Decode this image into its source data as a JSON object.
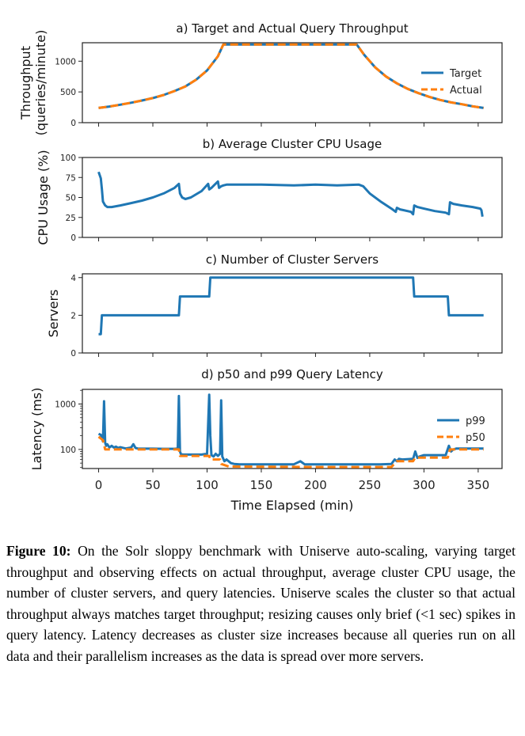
{
  "chart_data": [
    {
      "type": "line",
      "title": "a) Target and Actual Query Throughput",
      "ylabel": [
        "Throughput",
        "(queries/minute)"
      ],
      "xlim": [
        -15,
        372
      ],
      "ylim": [
        0,
        1300
      ],
      "yticks": [
        0,
        500,
        1000
      ],
      "legend_position": "right",
      "series": [
        {
          "name": "Target",
          "color": "#1f77b4",
          "dash": false,
          "x": [
            0,
            10,
            20,
            30,
            40,
            50,
            60,
            70,
            80,
            90,
            100,
            110,
            115,
            150,
            200,
            238,
            245,
            255,
            265,
            275,
            285,
            295,
            305,
            315,
            325,
            335,
            345,
            355
          ],
          "y": [
            240,
            262,
            292,
            325,
            360,
            400,
            450,
            515,
            590,
            700,
            850,
            1080,
            1270,
            1270,
            1270,
            1270,
            1100,
            900,
            750,
            640,
            550,
            480,
            420,
            370,
            330,
            300,
            265,
            240
          ]
        },
        {
          "name": "Actual",
          "color": "#ff7f0e",
          "dash": true,
          "x": [
            0,
            10,
            20,
            30,
            40,
            50,
            60,
            70,
            80,
            90,
            100,
            110,
            115,
            150,
            200,
            238,
            245,
            255,
            265,
            275,
            285,
            295,
            305,
            315,
            325,
            335,
            345,
            355
          ],
          "y": [
            240,
            262,
            292,
            325,
            360,
            400,
            450,
            515,
            590,
            700,
            850,
            1080,
            1270,
            1270,
            1270,
            1270,
            1100,
            900,
            750,
            640,
            550,
            480,
            420,
            370,
            330,
            300,
            265,
            240
          ]
        }
      ]
    },
    {
      "type": "line",
      "title": "b) Average Cluster CPU Usage",
      "ylabel": [
        "CPU Usage (%)"
      ],
      "xlim": [
        -15,
        372
      ],
      "ylim": [
        0,
        100
      ],
      "yticks": [
        0,
        25,
        50,
        75,
        100
      ],
      "series": [
        {
          "name": "",
          "color": "#1f77b4",
          "dash": false,
          "x": [
            0,
            1,
            2,
            3,
            4,
            6,
            8,
            12,
            20,
            30,
            40,
            50,
            60,
            70,
            74,
            75,
            77,
            80,
            85,
            95,
            101,
            102,
            104,
            107,
            110,
            111,
            113,
            115,
            118,
            130,
            150,
            180,
            200,
            220,
            240,
            244,
            250,
            260,
            270,
            274,
            275,
            278,
            288,
            290,
            291,
            294,
            300,
            310,
            320,
            323,
            324,
            327,
            335,
            345,
            352,
            353,
            354
          ],
          "y": [
            82,
            78,
            74,
            60,
            45,
            40,
            38,
            38,
            40,
            43,
            46,
            50,
            55,
            62,
            67,
            55,
            50,
            48,
            50,
            58,
            67,
            60,
            62,
            66,
            70,
            62,
            64,
            65,
            66,
            66,
            66,
            65,
            66,
            65,
            66,
            64,
            55,
            45,
            36,
            32,
            37,
            35,
            32,
            29,
            40,
            38,
            36,
            33,
            31,
            29,
            44,
            42,
            40,
            38,
            36,
            34,
            26
          ]
        }
      ]
    },
    {
      "type": "line",
      "title": "c) Number of Cluster Servers",
      "ylabel": [
        "Servers"
      ],
      "xlim": [
        -15,
        372
      ],
      "ylim": [
        0,
        4.2
      ],
      "yticks": [
        0,
        2,
        4
      ],
      "series": [
        {
          "name": "",
          "color": "#1f77b4",
          "dash": false,
          "x": [
            0,
            2,
            3,
            74,
            75,
            102,
            103,
            290,
            291,
            322,
            323,
            355
          ],
          "y": [
            1,
            1,
            2,
            2,
            3,
            3,
            4,
            4,
            3,
            3,
            2,
            2
          ]
        }
      ]
    },
    {
      "type": "line",
      "title": "d) p50 and p99 Query Latency",
      "ylabel": [
        "Latency (ms)"
      ],
      "xlabel": "Time Elapsed (min)",
      "xlim": [
        -15,
        372
      ],
      "ylim": [
        38,
        2100
      ],
      "yscale": "log",
      "yticks": [
        100,
        1000
      ],
      "xticks": [
        0,
        50,
        100,
        150,
        200,
        250,
        300,
        350
      ],
      "legend_position": "right",
      "series": [
        {
          "name": "p99",
          "color": "#1f77b4",
          "dash": false,
          "x": [
            0,
            2,
            4,
            5,
            6,
            7,
            8,
            10,
            12,
            14,
            16,
            18,
            20,
            25,
            30,
            32,
            34,
            36,
            40,
            50,
            60,
            70,
            73,
            74,
            75,
            76,
            78,
            85,
            95,
            100,
            102,
            103,
            104,
            106,
            108,
            110,
            112,
            113,
            114,
            116,
            118,
            122,
            125,
            130,
            140,
            150,
            160,
            170,
            180,
            186,
            190,
            200,
            220,
            240,
            260,
            270,
            273,
            275,
            277,
            280,
            290,
            292,
            294,
            296,
            300,
            310,
            320,
            323,
            325,
            327,
            330,
            340,
            350,
            355
          ],
          "y": [
            220,
            210,
            150,
            1150,
            140,
            120,
            130,
            110,
            120,
            110,
            115,
            108,
            112,
            105,
            110,
            130,
            108,
            105,
            104,
            104,
            103,
            103,
            105,
            1500,
            90,
            78,
            77,
            77,
            77,
            80,
            1600,
            200,
            75,
            70,
            80,
            72,
            80,
            1200,
            70,
            55,
            60,
            50,
            48,
            47,
            47,
            47,
            47,
            47,
            47,
            55,
            47,
            47,
            47,
            47,
            47,
            48,
            60,
            55,
            62,
            60,
            62,
            90,
            65,
            70,
            75,
            75,
            75,
            120,
            90,
            100,
            105,
            105,
            105,
            105
          ]
        },
        {
          "name": "p50",
          "color": "#ff7f0e",
          "dash": true,
          "x": [
            0,
            4,
            6,
            74,
            75,
            102,
            103,
            112,
            113,
            120,
            200,
            270,
            275,
            290,
            292,
            322,
            324,
            355
          ],
          "y": [
            190,
            160,
            100,
            100,
            72,
            72,
            60,
            60,
            48,
            42,
            41,
            41,
            55,
            55,
            66,
            66,
            100,
            100
          ]
        }
      ]
    }
  ],
  "caption": {
    "label": "Figure 10:",
    "text": "On the Solr sloppy benchmark with Uniserve auto-scaling, varying target throughput and observing effects on actual throughput, average cluster CPU usage, the number of cluster servers, and query latencies. Uniserve scales the cluster so that actual throughput always matches target throughput; resizing causes only brief (<1 sec) spikes in query latency. Latency decreases as cluster size increases because all queries run on all data and their parallelism increases as the data is spread over more servers."
  }
}
